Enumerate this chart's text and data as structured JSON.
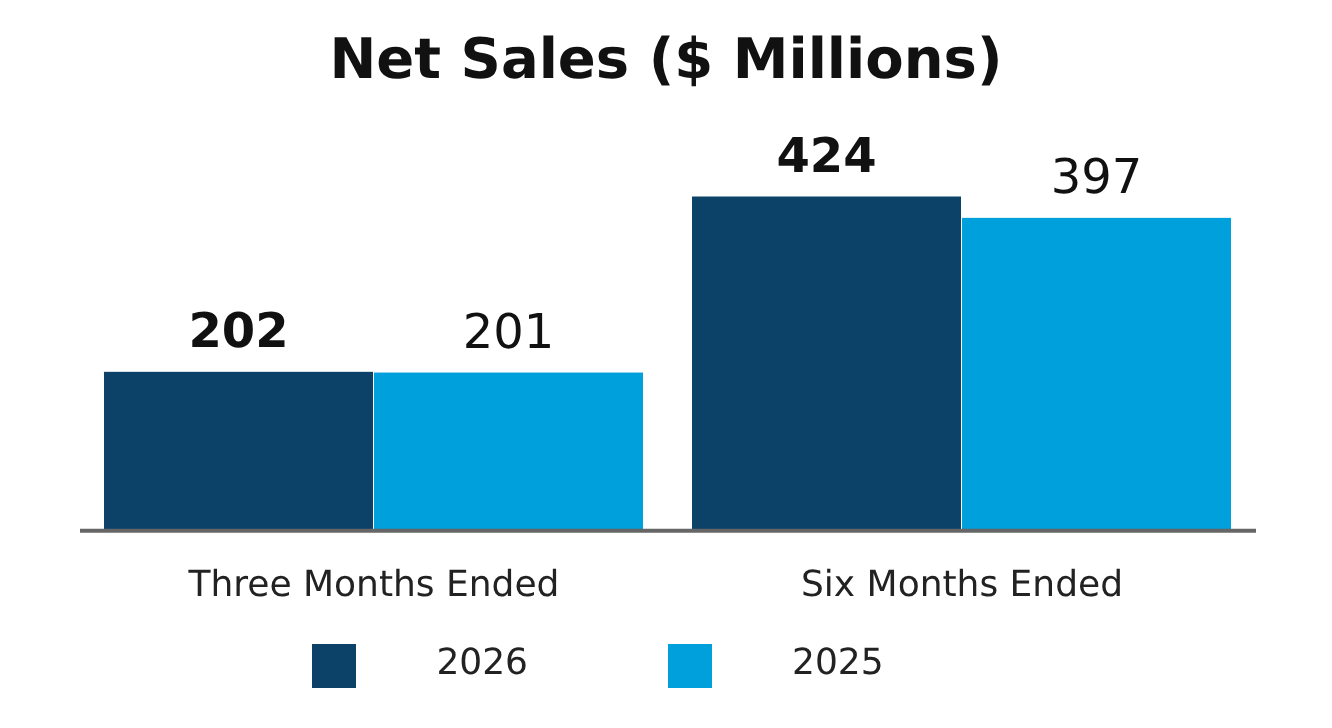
{
  "chart_data": {
    "type": "bar",
    "title": "Net Sales ($ Millions)",
    "categories": [
      "Three Months Ended",
      "Six Months Ended"
    ],
    "series": [
      {
        "name": "2026",
        "color": "#0c4168",
        "values": [
          202,
          424
        ]
      },
      {
        "name": "2025",
        "color": "#00a0dc",
        "values": [
          201,
          397
        ]
      }
    ],
    "data_labels": true,
    "legend": "bottom",
    "grid": false
  }
}
